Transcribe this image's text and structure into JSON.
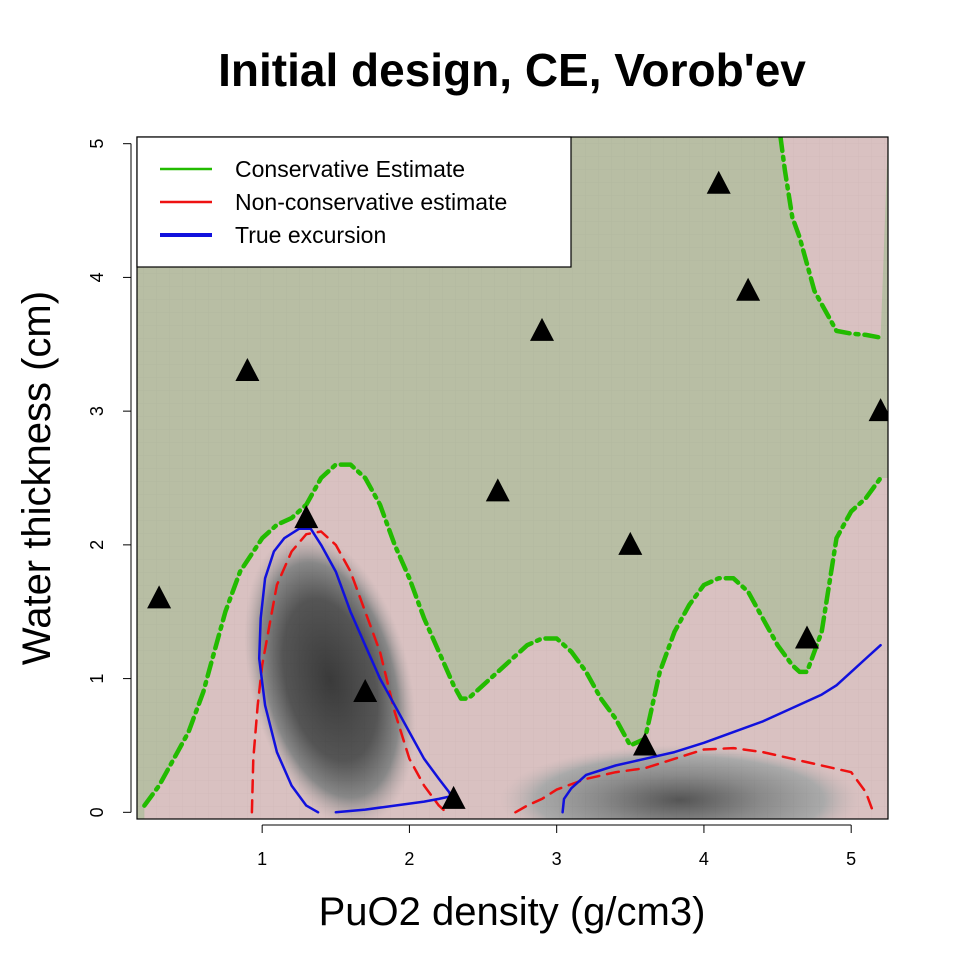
{
  "chart_data": {
    "type": "contour",
    "title": "Initial design, CE, Vorob'ev",
    "xlabel": "PuO2 density (g/cm3)",
    "ylabel": "Water thickness (cm)",
    "xlim": [
      0.15,
      5.25
    ],
    "ylim": [
      -0.05,
      5.05
    ],
    "xticks": [
      1,
      2,
      3,
      4,
      5
    ],
    "yticks": [
      0,
      1,
      2,
      3,
      4,
      5
    ],
    "legend": {
      "position": "top-left",
      "entries": [
        {
          "label": "Conservative Estimate",
          "color": "#22bb00"
        },
        {
          "label": "Non-conservative estimate",
          "color": "#ee1111"
        },
        {
          "label": "True excursion",
          "color": "#1111dd"
        }
      ]
    },
    "background": {
      "safe_color": "#b8bea4",
      "estimate_color": "#d9c1c1"
    },
    "design_points": [
      {
        "x": 0.3,
        "y": 1.6
      },
      {
        "x": 0.9,
        "y": 3.3
      },
      {
        "x": 1.3,
        "y": 2.2
      },
      {
        "x": 1.7,
        "y": 0.9
      },
      {
        "x": 2.3,
        "y": 0.1
      },
      {
        "x": 2.6,
        "y": 2.4
      },
      {
        "x": 2.9,
        "y": 3.6
      },
      {
        "x": 3.5,
        "y": 2.0
      },
      {
        "x": 3.6,
        "y": 0.5
      },
      {
        "x": 4.1,
        "y": 4.7
      },
      {
        "x": 4.3,
        "y": 3.9
      },
      {
        "x": 4.7,
        "y": 1.3
      },
      {
        "x": 5.2,
        "y": 3.0
      }
    ],
    "series": [
      {
        "name": "Conservative Estimate",
        "color": "#22bb00",
        "style": "dashdot",
        "x": [
          0.2,
          0.3,
          0.5,
          0.6,
          0.65,
          0.75,
          0.8,
          0.85,
          1.0,
          1.1,
          1.2,
          1.3,
          1.4,
          1.5,
          1.6,
          1.7,
          1.8,
          1.9,
          2.0,
          2.1,
          2.2,
          2.3,
          2.35,
          2.4,
          2.5,
          2.6,
          2.7,
          2.8,
          2.9,
          3.0,
          3.1,
          3.2,
          3.3,
          3.4,
          3.5,
          3.6,
          3.7,
          3.8,
          3.9,
          4.0,
          4.1,
          4.2,
          4.3,
          4.4,
          4.5,
          4.6,
          4.65,
          4.7,
          4.8,
          4.85,
          4.9,
          5.0,
          5.1,
          5.2
        ],
        "y": [
          0.05,
          0.2,
          0.6,
          0.9,
          1.1,
          1.5,
          1.65,
          1.8,
          2.05,
          2.15,
          2.2,
          2.3,
          2.5,
          2.6,
          2.6,
          2.5,
          2.3,
          2.0,
          1.75,
          1.45,
          1.2,
          0.95,
          0.85,
          0.85,
          0.95,
          1.05,
          1.15,
          1.25,
          1.3,
          1.3,
          1.2,
          1.05,
          0.85,
          0.7,
          0.5,
          0.55,
          1.05,
          1.35,
          1.55,
          1.7,
          1.75,
          1.75,
          1.65,
          1.45,
          1.25,
          1.1,
          1.05,
          1.05,
          1.35,
          1.7,
          2.05,
          2.25,
          2.35,
          2.5
        ]
      },
      {
        "name": "Conservative Estimate (upper)",
        "color": "#22bb00",
        "style": "dashdot",
        "x": [
          4.52,
          4.55,
          4.6,
          4.65,
          4.7,
          4.75,
          4.8,
          4.85,
          4.9,
          5.0,
          5.1,
          5.2
        ],
        "y": [
          5.05,
          4.8,
          4.45,
          4.3,
          4.1,
          3.9,
          3.8,
          3.7,
          3.6,
          3.58,
          3.57,
          3.55
        ]
      },
      {
        "name": "Non-conservative estimate",
        "color": "#ee1111",
        "style": "dashed",
        "x": [
          0.93,
          0.94,
          0.97,
          1.0,
          1.05,
          1.1,
          1.2,
          1.3,
          1.4,
          1.5,
          1.6,
          1.7,
          1.8,
          1.9,
          2.0,
          2.1,
          2.2,
          2.25
        ],
        "y": [
          0.0,
          0.4,
          0.8,
          1.1,
          1.4,
          1.7,
          1.95,
          2.08,
          2.1,
          2.0,
          1.8,
          1.5,
          1.2,
          0.75,
          0.4,
          0.2,
          0.05,
          0.0
        ]
      },
      {
        "name": "Non-conservative estimate (right)",
        "color": "#ee1111",
        "style": "dashed",
        "x": [
          2.72,
          2.8,
          2.9,
          3.0,
          3.2,
          3.4,
          3.6,
          3.8,
          4.0,
          4.2,
          4.4,
          4.6,
          4.8,
          5.0,
          5.1,
          5.15
        ],
        "y": [
          0.0,
          0.05,
          0.1,
          0.17,
          0.25,
          0.3,
          0.33,
          0.4,
          0.47,
          0.48,
          0.45,
          0.4,
          0.35,
          0.3,
          0.15,
          0.0
        ]
      },
      {
        "name": "True excursion",
        "color": "#1111dd",
        "style": "solid",
        "x": [
          1.38,
          1.3,
          1.2,
          1.1,
          1.02,
          0.98,
          0.99,
          1.02,
          1.08,
          1.15,
          1.25,
          1.33,
          1.4,
          1.5,
          1.6,
          1.7,
          1.8,
          1.9,
          2.0,
          2.1,
          2.2,
          2.27,
          2.28,
          2.2,
          2.1,
          1.9,
          1.7,
          1.5
        ],
        "y": [
          0.0,
          0.05,
          0.2,
          0.45,
          0.8,
          1.15,
          1.45,
          1.75,
          1.95,
          2.05,
          2.12,
          2.12,
          2.0,
          1.8,
          1.5,
          1.25,
          1.0,
          0.8,
          0.6,
          0.4,
          0.25,
          0.15,
          0.12,
          0.1,
          0.08,
          0.05,
          0.02,
          0.0
        ]
      },
      {
        "name": "True excursion (right)",
        "color": "#1111dd",
        "style": "solid",
        "x": [
          3.04,
          3.05,
          3.1,
          3.2,
          3.4,
          3.6,
          3.8,
          4.0,
          4.2,
          4.4,
          4.6,
          4.8,
          4.9,
          5.0,
          5.1,
          5.2
        ],
        "y": [
          0.0,
          0.1,
          0.18,
          0.28,
          0.35,
          0.4,
          0.45,
          0.52,
          0.6,
          0.68,
          0.78,
          0.88,
          0.95,
          1.05,
          1.15,
          1.25
        ]
      }
    ]
  }
}
